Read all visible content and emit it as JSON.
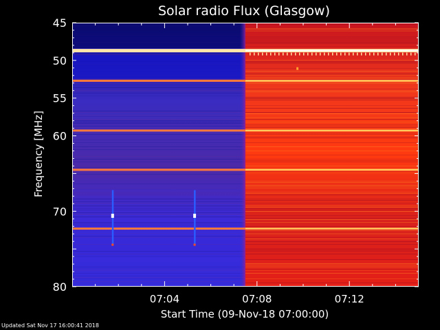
{
  "chart_data": {
    "type": "heatmap",
    "title": "Solar radio Flux (Glasgow)",
    "xlabel": "Start Time (09-Nov-18 07:00:00)",
    "ylabel": "Frequency [MHz]",
    "x_ticks": [
      "07:04",
      "07:08",
      "07:12"
    ],
    "x_tick_minutes": [
      4,
      8,
      12
    ],
    "xlim_minutes": [
      0,
      15
    ],
    "y_ticks": [
      45,
      50,
      55,
      60,
      65,
      70,
      75,
      80
    ],
    "y_tick_labels": [
      "45",
      "50",
      "55",
      "60",
      "",
      "70",
      "",
      "80"
    ],
    "ylim": [
      45,
      80
    ],
    "y_inverted": true,
    "transition_minute": 7.5,
    "pre_transition_color": "#3a22c8",
    "post_transition_color": "#e8261a",
    "bright_lines_mhz": [
      48.7,
      52.7,
      59.3,
      64.5,
      72.3
    ],
    "colors": {
      "low": "#1c0f96",
      "mid": "#e8261a",
      "high": "#ffd27a",
      "peak": "#ffffff"
    }
  },
  "footer": {
    "updated": "Updated Sat Nov 17 16:00:41 2018"
  }
}
